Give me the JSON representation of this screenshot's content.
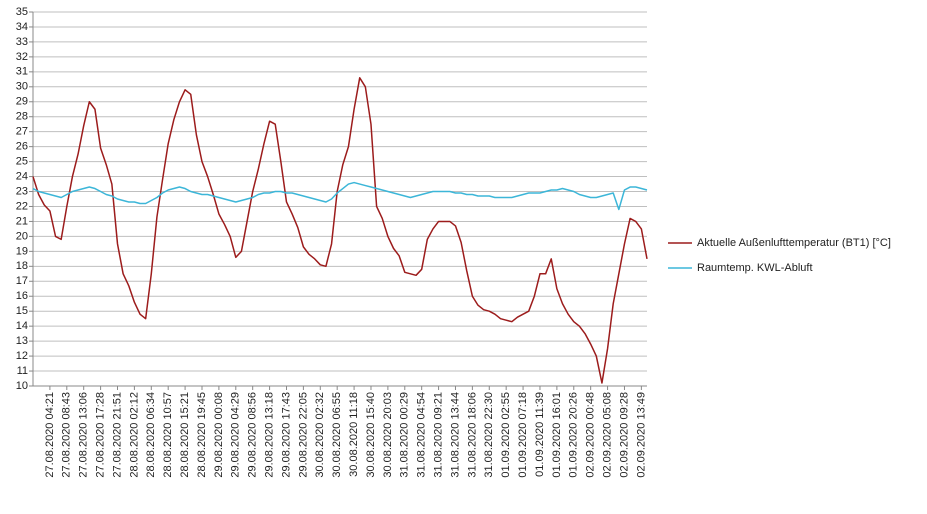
{
  "chart_data": {
    "type": "line",
    "categories": [
      null,
      null,
      null,
      "27.08.2020 04:21",
      null,
      null,
      "27.08.2020 08:43",
      null,
      null,
      "27.08.2020 13:06",
      null,
      null,
      "27.08.2020 17:28",
      null,
      null,
      "27.08.2020 21:51",
      null,
      null,
      "28.08.2020 02:12",
      null,
      null,
      "28.08.2020 06:34",
      null,
      null,
      "28.08.2020 10:57",
      null,
      null,
      "28.08.2020 15:21",
      null,
      null,
      "28.08.2020 19:45",
      null,
      null,
      "29.08.2020 00:08",
      null,
      null,
      "29.08.2020 04:29",
      null,
      null,
      "29.08.2020 08:56",
      null,
      null,
      "29.08.2020 13:18",
      null,
      null,
      "29.08.2020 17:43",
      null,
      null,
      "29.08.2020 22:05",
      null,
      null,
      "30.08.2020 02:32",
      null,
      null,
      "30.08.2020 06:55",
      null,
      null,
      "30.08.2020 11:18",
      null,
      null,
      "30.08.2020 15:40",
      null,
      null,
      "30.08.2020 20:03",
      null,
      null,
      "31.08.2020 00:29",
      null,
      null,
      "31.08.2020 04:54",
      null,
      null,
      "31.08.2020 09:21",
      null,
      null,
      "31.08.2020 13:44",
      null,
      null,
      "31.08.2020 18:06",
      null,
      null,
      "31.08.2020 22:30",
      null,
      null,
      "01.09.2020 02:55",
      null,
      null,
      "01.09.2020 07:18",
      null,
      null,
      "01.09.2020 11:39",
      null,
      null,
      "01.09.2020 16:01",
      null,
      null,
      "01.09.2020 20:26",
      null,
      null,
      "02.09.2020 00:48",
      null,
      null,
      "02.09.2020 05:08",
      null,
      null,
      "02.09.2020 09:28",
      null,
      null,
      "02.09.2020 13:49",
      null
    ],
    "series": [
      {
        "name": "Aktuelle Außenlufttemperatur (BT1) [°C]",
        "color": "#9c1c1c",
        "values": [
          24.0,
          22.8,
          22.1,
          21.7,
          20.0,
          19.8,
          22.0,
          24.0,
          25.5,
          27.4,
          29.0,
          28.5,
          25.9,
          24.8,
          23.5,
          19.5,
          17.5,
          16.7,
          15.6,
          14.8,
          14.5,
          17.5,
          21.3,
          23.8,
          26.2,
          27.8,
          29.0,
          29.8,
          29.5,
          26.8,
          25.0,
          24.0,
          22.8,
          21.5,
          20.8,
          20.0,
          18.6,
          19.0,
          21.0,
          23.0,
          24.5,
          26.2,
          27.7,
          27.5,
          25.0,
          22.3,
          21.5,
          20.6,
          19.3,
          18.8,
          18.5,
          18.1,
          18.0,
          19.5,
          23.0,
          24.8,
          26.0,
          28.5,
          30.6,
          30.0,
          27.5,
          22.0,
          21.2,
          20.0,
          19.2,
          18.7,
          17.6,
          17.5,
          17.4,
          17.8,
          19.8,
          20.5,
          21.0,
          21.0,
          21.0,
          20.7,
          19.6,
          17.7,
          16.0,
          15.4,
          15.1,
          15.0,
          14.8,
          14.5,
          14.4,
          14.3,
          14.6,
          14.8,
          15.0,
          16.0,
          17.5,
          17.5,
          18.5,
          16.5,
          15.5,
          14.8,
          14.3,
          14.0,
          13.5,
          12.8,
          12.0,
          10.2,
          12.5,
          15.5,
          17.5,
          19.5,
          21.2,
          21.0,
          20.5,
          18.5
        ]
      },
      {
        "name": "Raumtemp. KWL-Abluft",
        "color": "#3cb6d8",
        "values": [
          23.2,
          23.0,
          22.9,
          22.8,
          22.7,
          22.6,
          22.8,
          23.0,
          23.1,
          23.2,
          23.3,
          23.2,
          23.0,
          22.8,
          22.7,
          22.5,
          22.4,
          22.3,
          22.3,
          22.2,
          22.2,
          22.4,
          22.6,
          22.9,
          23.1,
          23.2,
          23.3,
          23.2,
          23.0,
          22.9,
          22.8,
          22.8,
          22.7,
          22.6,
          22.5,
          22.4,
          22.3,
          22.4,
          22.5,
          22.6,
          22.8,
          22.9,
          22.9,
          23.0,
          23.0,
          22.9,
          22.9,
          22.8,
          22.7,
          22.6,
          22.5,
          22.4,
          22.3,
          22.5,
          22.9,
          23.2,
          23.5,
          23.6,
          23.5,
          23.4,
          23.3,
          23.2,
          23.1,
          23.0,
          22.9,
          22.8,
          22.7,
          22.6,
          22.7,
          22.8,
          22.9,
          23.0,
          23.0,
          23.0,
          23.0,
          22.9,
          22.9,
          22.8,
          22.8,
          22.7,
          22.7,
          22.7,
          22.6,
          22.6,
          22.6,
          22.6,
          22.7,
          22.8,
          22.9,
          22.9,
          22.9,
          23.0,
          23.1,
          23.1,
          23.2,
          23.1,
          23.0,
          22.8,
          22.7,
          22.6,
          22.6,
          22.7,
          22.8,
          22.9,
          21.8,
          23.1,
          23.3,
          23.3,
          23.2,
          23.1
        ]
      }
    ],
    "ylim": [
      10,
      35
    ],
    "yticks": [
      10,
      11,
      12,
      13,
      14,
      15,
      16,
      17,
      18,
      19,
      20,
      21,
      22,
      23,
      24,
      25,
      26,
      27,
      28,
      29,
      30,
      31,
      32,
      33,
      34,
      35
    ],
    "grid": true,
    "legend": "right"
  }
}
